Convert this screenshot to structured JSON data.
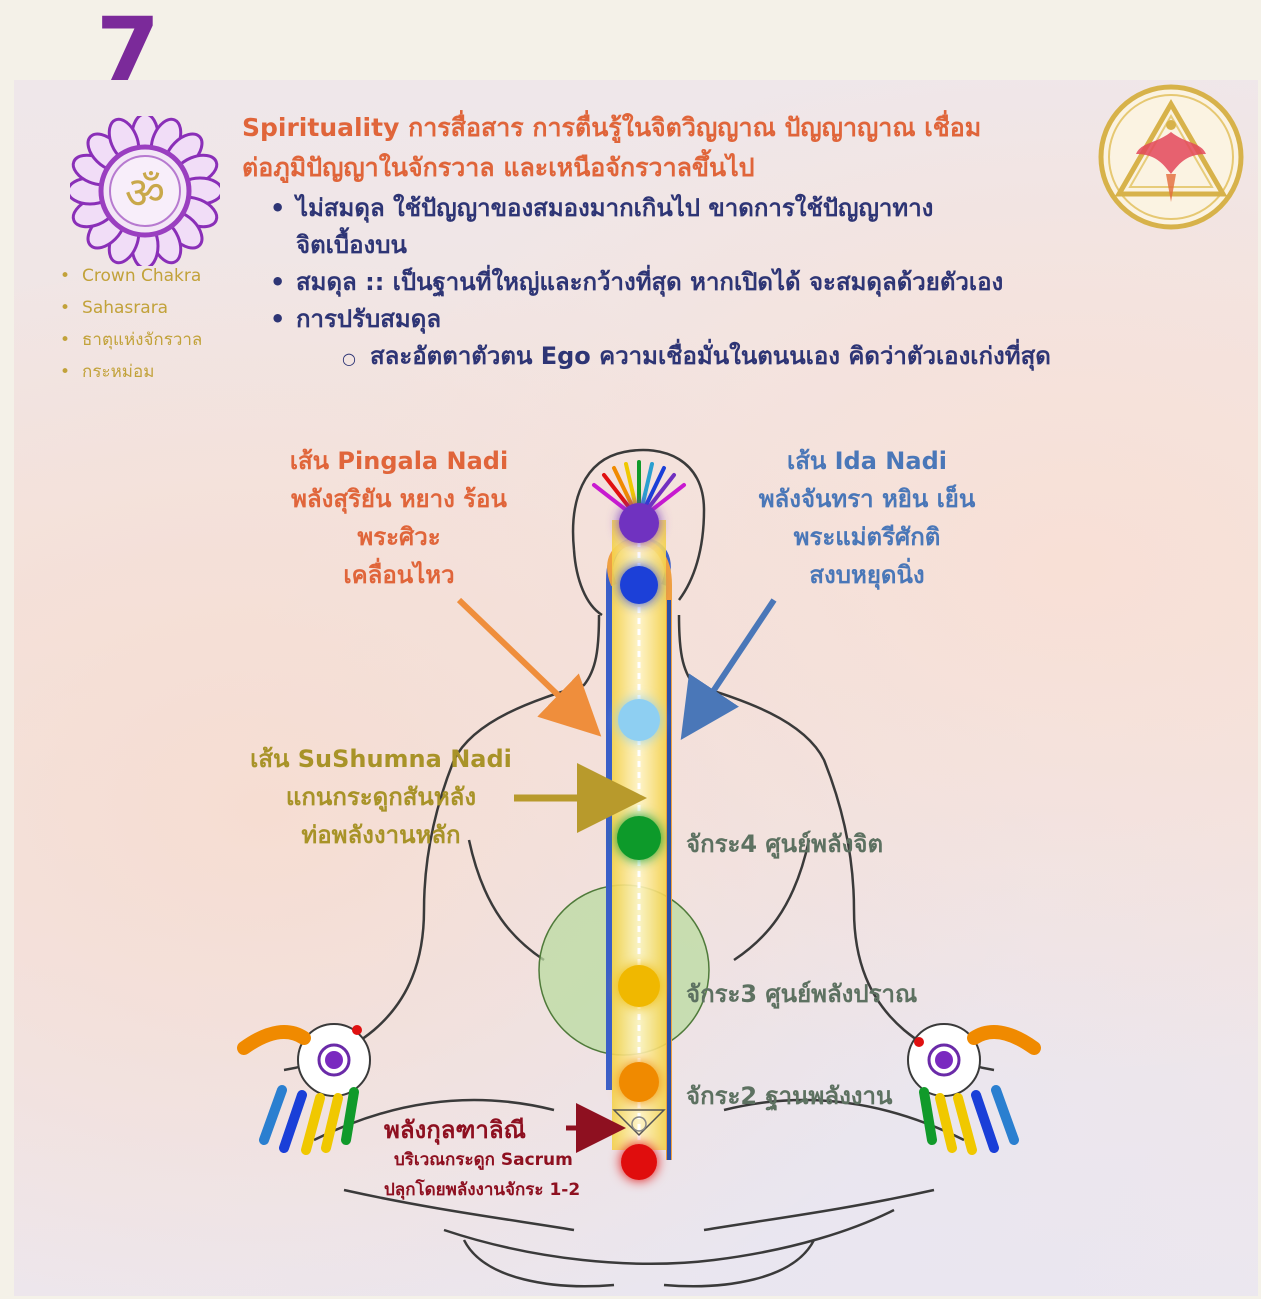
{
  "page_number": "7",
  "colors": {
    "purple": "#7b2a9a",
    "orange_red": "#e0653a",
    "navy": "#2e3575",
    "gold": "#c2a23a",
    "blue": "#4a77b8",
    "olive": "#a89328",
    "green_gray": "#5d7161",
    "dark_red": "#8e1020",
    "chakra_colors": [
      "#7030c0",
      "#1a3fd8",
      "#8ecff2",
      "#119a2a",
      "#f0b800",
      "#f08a00",
      "#e01010"
    ]
  },
  "sidebar": {
    "icon": "crown-chakra-lotus-om-icon",
    "items": [
      "Crown Chakra",
      "Sahasrara",
      "ธาตุแห่งจักรวาล",
      "กระหม่อม"
    ]
  },
  "logo": "triangle-phoenix-logo",
  "intro": {
    "line1": "Spirituality การสื่อสาร การตื่นรู้ในจิตวิญญาณ ปัญญาญาณ เชื่อม",
    "line2": "ต่อภูมิปัญญาในจักรวาล และเหนือจักรวาลขึ้นไป"
  },
  "bullets": [
    {
      "text": "ไม่สมดุล ใช้ปัญญาของสมองมากเกินไป ขาดการใช้ปัญญาทาง",
      "cont": "จิตเบื้องบน"
    },
    {
      "text": "สมดุล :: เป็นฐานที่ใหญ่และกว้างที่สุด หากเปิดได้ จะสมดุลด้วยตัวเอง"
    },
    {
      "text": "การปรับสมดุล",
      "sub": "สละอัตตาตัวตน Ego ความเชื่อมั่นในตนนเอง คิดว่าตัวเองเก่งที่สุด"
    }
  ],
  "pingala": {
    "l1": "เส้น Pingala Nadi",
    "l2": "พลังสุริยัน หยาง ร้อน",
    "l3": "พระศิวะ",
    "l4": "เคลื่อนไหว"
  },
  "ida": {
    "l1": "เส้น Ida Nadi",
    "l2": "พลังจันทรา หยิน เย็น",
    "l3": "พระแม่ตรีศักติ",
    "l4": "สงบหยุดนิ่ง"
  },
  "sushumna": {
    "l1": "เส้น SuShumna Nadi",
    "l2": "แกนกระดูกสันหลัง",
    "l3": "ท่อพลังงานหลัก"
  },
  "chakra4": "จักระ4 ศูนย์พลังจิต",
  "chakra3": "จักระ3 ศูนย์พลังปราณ",
  "chakra2": "จักระ2 ฐานพลังงาน",
  "kundalini": {
    "l1": "พลังกุลฑาลิณี",
    "l2": "บริเวณกระดูก Sacrum",
    "l3": "ปลุกโดยพลังงานจักระ 1-2"
  }
}
